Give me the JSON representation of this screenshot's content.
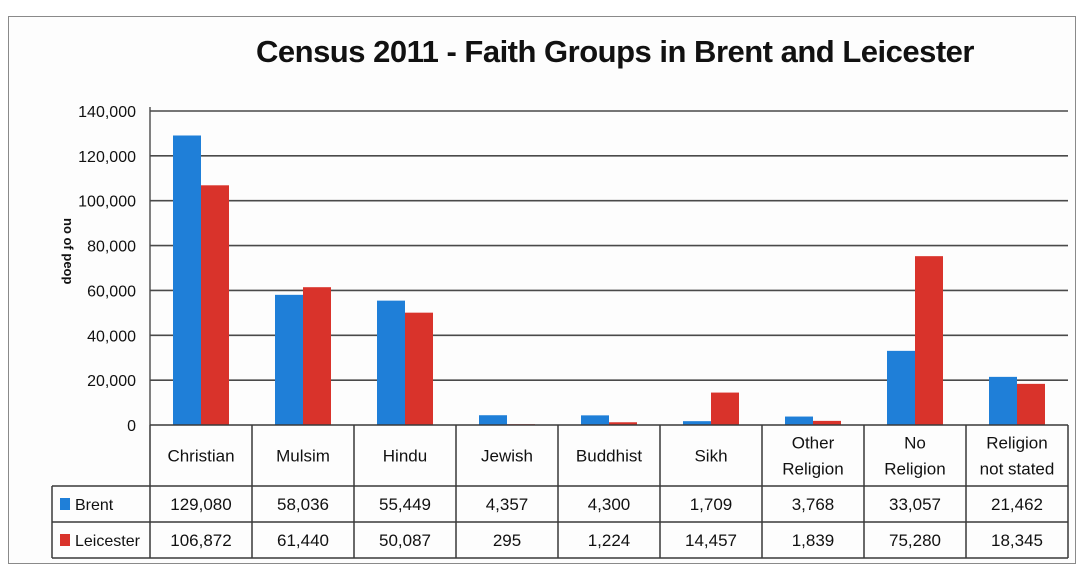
{
  "chart_data": {
    "type": "bar",
    "title": "Census 2011 - Faith Groups in Brent and Leicester",
    "ylabel": "no of peop",
    "xlabel": "",
    "ylim": [
      0,
      140000
    ],
    "yticks": [
      "0",
      "20,000",
      "40,000",
      "60,000",
      "80,000",
      "100,000",
      "120,000",
      "140,000"
    ],
    "grid": true,
    "legend": "data-table",
    "categories": [
      [
        "Christian"
      ],
      [
        "Mulsim"
      ],
      [
        "Hindu"
      ],
      [
        "Jewish"
      ],
      [
        "Buddhist"
      ],
      [
        "Sikh"
      ],
      [
        "Other",
        "Religion"
      ],
      [
        "No",
        "Religion"
      ],
      [
        "Religion",
        "not stated"
      ]
    ],
    "series": [
      {
        "name": "Brent",
        "color": "#1f7fd8",
        "values": [
          129080,
          58036,
          55449,
          4357,
          4300,
          1709,
          3768,
          33057,
          21462
        ],
        "labels": [
          "129,080",
          "58,036",
          "55,449",
          "4,357",
          "4,300",
          "1,709",
          "3,768",
          "33,057",
          "21,462"
        ]
      },
      {
        "name": "Leicester",
        "color": "#d9332b",
        "values": [
          106872,
          61440,
          50087,
          295,
          1224,
          14457,
          1839,
          75280,
          18345
        ],
        "labels": [
          "106,872",
          "61,440",
          "50,087",
          "295",
          "1,224",
          "14,457",
          "1,839",
          "75,280",
          "18,345"
        ]
      }
    ]
  }
}
